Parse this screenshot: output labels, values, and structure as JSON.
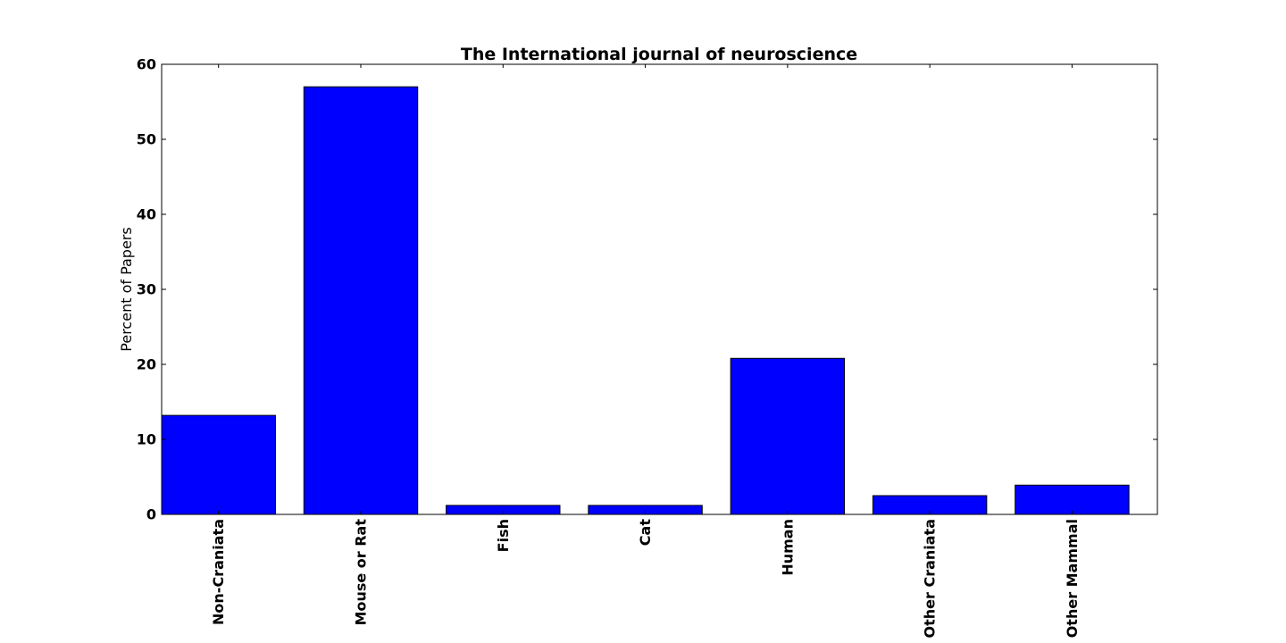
{
  "chart_data": {
    "type": "bar",
    "title": "The International journal of neuroscience",
    "xlabel": "",
    "ylabel": "Percent of Papers",
    "categories": [
      "Non-Craniata",
      "Mouse or Rat",
      "Fish",
      "Cat",
      "Human",
      "Other Craniata",
      "Other Mammal"
    ],
    "values": [
      13.2,
      57.0,
      1.2,
      1.2,
      20.8,
      2.5,
      3.9
    ],
    "ylim": [
      0,
      60
    ],
    "yticks": [
      "0",
      "10",
      "20",
      "30",
      "40",
      "50",
      "60"
    ],
    "bar_color": "#0000ff",
    "grid": false,
    "legend": "none"
  }
}
